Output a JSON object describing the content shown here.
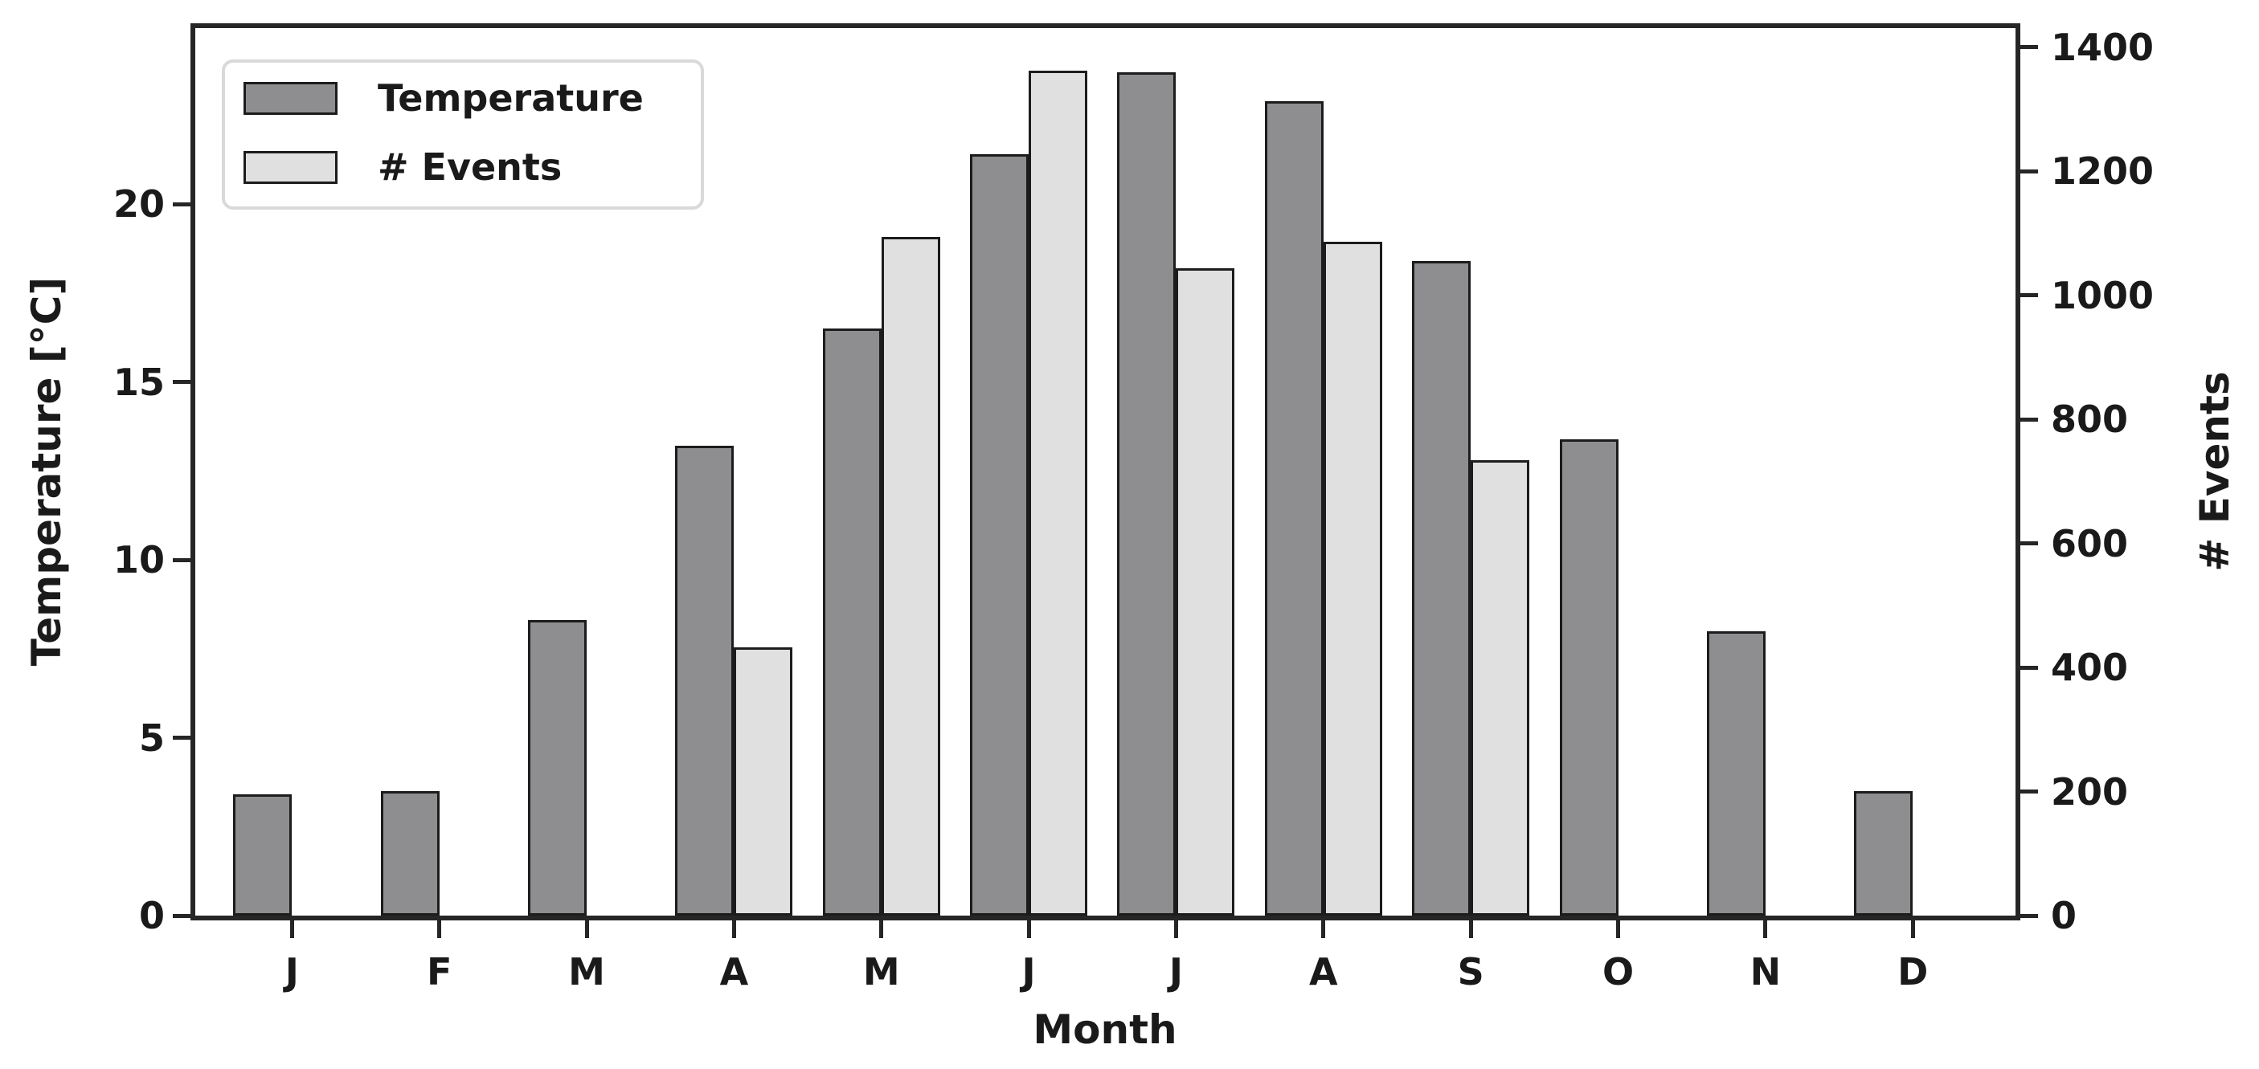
{
  "colors": {
    "background": "#ffffff",
    "spine": "#262626",
    "text": "#1a1a1a",
    "bar_edge": "#1c1c1c",
    "legend_border": "#d9d9d9",
    "temperature_fill": "#8e8e90",
    "events_fill": "#e0e0e1"
  },
  "chart_data": {
    "type": "bar",
    "title": "",
    "categories": [
      "J",
      "F",
      "M",
      "A",
      "M",
      "J",
      "J",
      "A",
      "S",
      "O",
      "N",
      "D"
    ],
    "series": [
      {
        "name": "Temperature",
        "axis": "left",
        "color": "#8e8e90",
        "values": [
          3.4,
          3.5,
          8.3,
          13.2,
          16.5,
          21.4,
          23.7,
          22.9,
          18.4,
          13.4,
          8.0,
          3.5
        ]
      },
      {
        "name": "# Events",
        "axis": "right",
        "color": "#e0e0e1",
        "values": [
          0,
          0,
          0,
          433,
          1094,
          1362,
          1044,
          1086,
          734,
          0,
          0,
          0
        ]
      }
    ],
    "xlabel": "Month",
    "left_axis": {
      "label": "Temperature [°C]",
      "ticks": [
        0,
        5,
        10,
        15,
        20
      ],
      "range": [
        0,
        24.95
      ]
    },
    "right_axis": {
      "label": "# Events",
      "ticks": [
        0,
        200,
        400,
        600,
        800,
        1000,
        1200,
        1400
      ],
      "range": [
        0,
        1431
      ]
    },
    "legend": {
      "position": "upper left",
      "entries": [
        "Temperature",
        "# Events"
      ]
    },
    "grid": false
  }
}
